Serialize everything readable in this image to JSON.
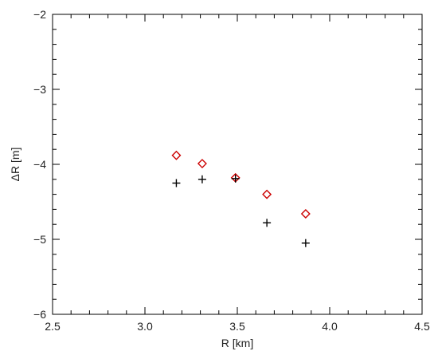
{
  "chart_data": {
    "type": "scatter",
    "title": "",
    "xlabel": "R [km]",
    "ylabel": "ΔR [m]",
    "xlim": [
      2.5,
      4.5
    ],
    "ylim": [
      -6,
      -2
    ],
    "xticks": [
      2.5,
      3.0,
      3.5,
      4.0,
      4.5
    ],
    "xtick_labels": [
      "2.5",
      "3.0",
      "3.5",
      "4.0",
      "4.5"
    ],
    "yticks": [
      -6,
      -5,
      -4,
      -3,
      -2
    ],
    "ytick_labels": [
      "−6",
      "−5",
      "−4",
      "−3",
      "−2"
    ],
    "grid": false,
    "series": [
      {
        "marker": "diamond",
        "color": "#cc0000",
        "x": [
          3.17,
          3.31,
          3.49,
          3.66,
          3.87
        ],
        "y": [
          -3.88,
          -3.99,
          -4.18,
          -4.4,
          -4.66
        ]
      },
      {
        "marker": "plus",
        "color": "#000000",
        "x": [
          3.17,
          3.31,
          3.49,
          3.66,
          3.87
        ],
        "y": [
          -4.25,
          -4.2,
          -4.19,
          -4.78,
          -5.05
        ]
      }
    ]
  }
}
